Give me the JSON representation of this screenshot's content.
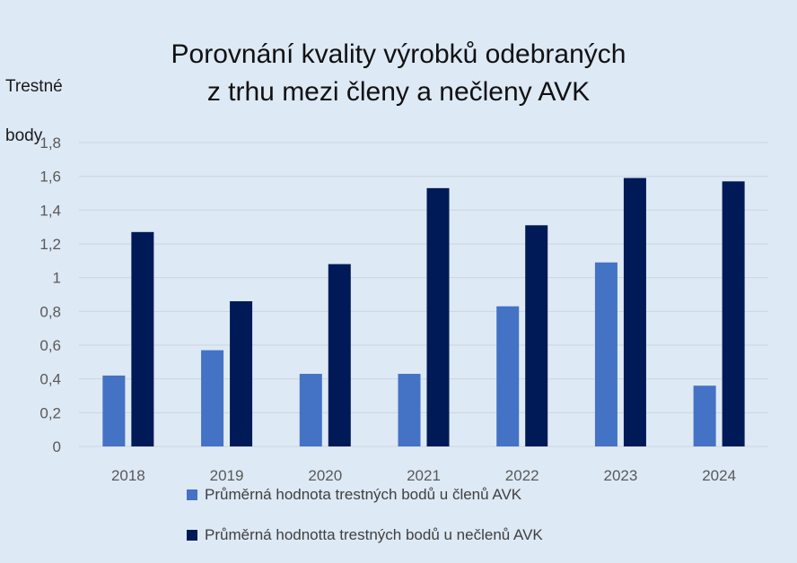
{
  "colors": {
    "background": "#dde9f5",
    "gridline": "#cdd5df",
    "tick_text": "#595959",
    "series_members": "#4472c4",
    "series_nonmembers": "#001a57"
  },
  "chart_data": {
    "type": "bar",
    "title_lines": [
      "Porovnání kvality výrobků odebraných",
      "z trhu mezi členy a nečleny AVK"
    ],
    "ylabel": "Trestné\n\nbody",
    "xlabel": "",
    "categories": [
      "2018",
      "2019",
      "2020",
      "2021",
      "2022",
      "2023",
      "2024"
    ],
    "ylim": [
      0,
      1.8
    ],
    "yticks": [
      0,
      0.2,
      0.4,
      0.6,
      0.8,
      1,
      1.2,
      1.4,
      1.6,
      1.8
    ],
    "ytick_labels": [
      "0",
      "0,2",
      "0,4",
      "0,6",
      "0,8",
      "1",
      "1,2",
      "1,4",
      "1,6",
      "1,8"
    ],
    "grid": true,
    "legend_position": "bottom",
    "series": [
      {
        "name": "Průměrná hodnota trestných bodů u členů AVK",
        "color": "#4472c4",
        "values": [
          0.42,
          0.57,
          0.43,
          0.43,
          0.83,
          1.09,
          0.36
        ]
      },
      {
        "name": "Průměrná hodnotta trestných bodů u nečlenů AVK",
        "color": "#001a57",
        "values": [
          1.27,
          0.86,
          1.08,
          1.53,
          1.31,
          1.59,
          1.57
        ]
      }
    ]
  }
}
